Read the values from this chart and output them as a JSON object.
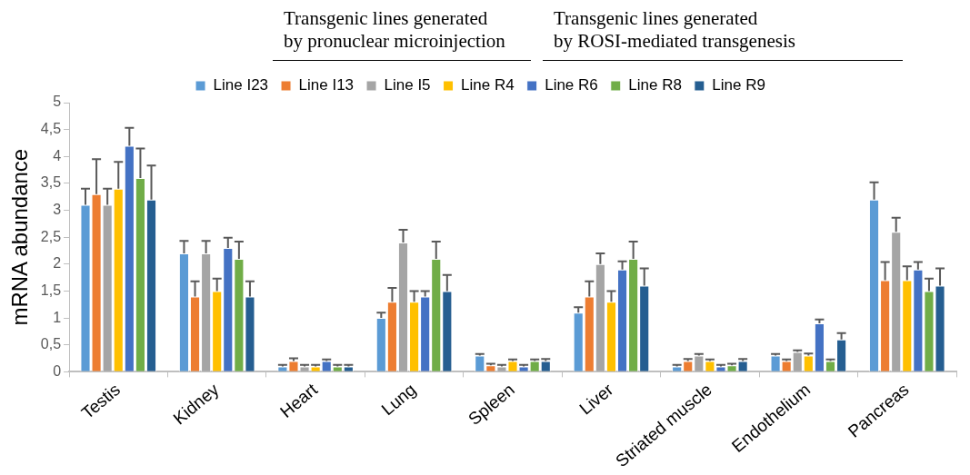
{
  "chart_data": {
    "type": "bar",
    "ylabel": "mRNA abundance",
    "annotations": [
      "Transgenic lines generated\nby pronuclear microinjection",
      "Transgenic lines generated\nby ROSI-mediated transgenesis"
    ],
    "categories": [
      "Testis",
      "Kidney",
      "Heart",
      "Lung",
      "Spleen",
      "Liver",
      "Striated muscle",
      "Endothelium",
      "Pancreas"
    ],
    "series": [
      {
        "name": "Line I23",
        "color": "#5b9bd5",
        "values": [
          3.1,
          2.2,
          0.1,
          1.0,
          0.3,
          1.1,
          0.1,
          0.3,
          3.2
        ],
        "errors": [
          [
            3.1,
            3.4
          ],
          [
            2.2,
            2.43
          ],
          [
            0.1,
            0.13
          ],
          [
            1.0,
            1.1
          ],
          [
            0.3,
            0.33
          ],
          [
            1.1,
            1.2
          ],
          [
            0.1,
            0.13
          ],
          [
            0.3,
            0.33
          ],
          [
            3.2,
            3.52
          ]
        ]
      },
      {
        "name": "Line I13",
        "color": "#ed7d31",
        "values": [
          3.3,
          1.4,
          0.2,
          1.3,
          0.12,
          1.4,
          0.2,
          0.2,
          1.7
        ],
        "errors": [
          [
            3.3,
            3.95
          ],
          [
            1.4,
            1.68
          ],
          [
            0.2,
            0.25
          ],
          [
            1.3,
            1.56
          ],
          [
            0.12,
            0.15
          ],
          [
            1.4,
            1.68
          ],
          [
            0.2,
            0.24
          ],
          [
            0.2,
            0.23
          ],
          [
            1.7,
            2.04
          ]
        ]
      },
      {
        "name": "Line I5",
        "color": "#a5a5a5",
        "values": [
          3.1,
          2.2,
          0.1,
          2.4,
          0.1,
          2.0,
          0.3,
          0.37,
          2.6
        ],
        "errors": [
          [
            3.1,
            3.4
          ],
          [
            2.2,
            2.43
          ],
          [
            0.1,
            0.13
          ],
          [
            2.4,
            2.64
          ],
          [
            0.1,
            0.13
          ],
          [
            2.0,
            2.2
          ],
          [
            0.3,
            0.33
          ],
          [
            0.37,
            0.4
          ],
          [
            2.6,
            2.86
          ]
        ]
      },
      {
        "name": "Line R4",
        "color": "#ffc000",
        "values": [
          3.4,
          1.5,
          0.1,
          1.3,
          0.2,
          1.3,
          0.2,
          0.3,
          1.7
        ],
        "errors": [
          [
            3.4,
            3.9
          ],
          [
            1.5,
            1.73
          ],
          [
            0.1,
            0.13
          ],
          [
            1.3,
            1.5
          ],
          [
            0.2,
            0.23
          ],
          [
            1.3,
            1.5
          ],
          [
            0.2,
            0.23
          ],
          [
            0.3,
            0.34
          ],
          [
            1.7,
            1.96
          ]
        ]
      },
      {
        "name": "Line R6",
        "color": "#4472c4",
        "values": [
          4.2,
          2.3,
          0.2,
          1.4,
          0.1,
          1.9,
          0.1,
          0.9,
          1.9
        ],
        "errors": [
          [
            4.2,
            4.53
          ],
          [
            2.3,
            2.49
          ],
          [
            0.2,
            0.23
          ],
          [
            1.4,
            1.5
          ],
          [
            0.1,
            0.13
          ],
          [
            1.9,
            2.05
          ],
          [
            0.1,
            0.13
          ],
          [
            0.9,
            0.97
          ],
          [
            1.9,
            2.04
          ]
        ]
      },
      {
        "name": "Line R8",
        "color": "#70ad47",
        "values": [
          3.6,
          2.1,
          0.1,
          2.1,
          0.2,
          2.1,
          0.12,
          0.2,
          1.5
        ],
        "errors": [
          [
            3.6,
            4.15
          ],
          [
            2.1,
            2.42
          ],
          [
            0.1,
            0.13
          ],
          [
            2.1,
            2.42
          ],
          [
            0.2,
            0.23
          ],
          [
            2.1,
            2.42
          ],
          [
            0.12,
            0.15
          ],
          [
            0.2,
            0.23
          ],
          [
            1.5,
            1.73
          ]
        ]
      },
      {
        "name": "Line R9",
        "color": "#255e91",
        "values": [
          3.2,
          1.4,
          0.1,
          1.5,
          0.2,
          1.6,
          0.2,
          0.6,
          1.6
        ],
        "errors": [
          [
            3.2,
            3.83
          ],
          [
            1.4,
            1.68
          ],
          [
            0.1,
            0.13
          ],
          [
            1.5,
            1.8
          ],
          [
            0.2,
            0.24
          ],
          [
            1.6,
            1.92
          ],
          [
            0.2,
            0.24
          ],
          [
            0.6,
            0.72
          ],
          [
            1.6,
            1.92
          ]
        ]
      }
    ],
    "ylim": [
      0,
      5
    ],
    "yticks": [
      0,
      {
        "value": 0.5,
        "label": "0,5"
      },
      1,
      {
        "value": 1.5,
        "label": "1,5"
      },
      2,
      {
        "value": 2.5,
        "label": "2,5"
      },
      3,
      {
        "value": 3.5,
        "label": "3,5"
      },
      4,
      {
        "value": 4.5,
        "label": "4,5"
      },
      5
    ],
    "legend": "top"
  }
}
